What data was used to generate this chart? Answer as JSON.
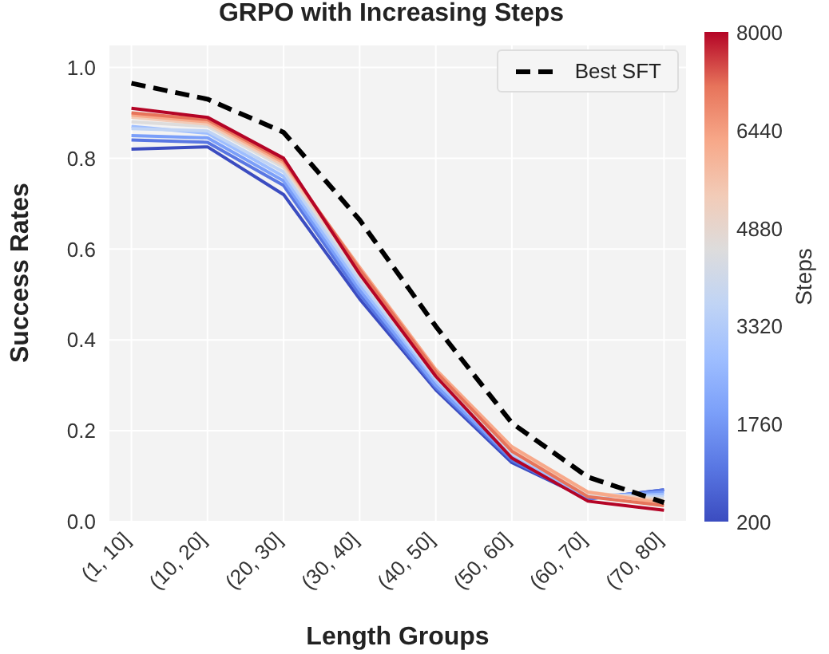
{
  "chart_data": {
    "type": "line",
    "title": "GRPO with Increasing Steps",
    "xlabel": "Length Groups",
    "ylabel": "Success Rates",
    "clabel": "Steps",
    "categories": [
      "(1, 10]",
      "(10, 20]",
      "(20, 30]",
      "(30, 40]",
      "(40, 50]",
      "(50, 60]",
      "(60, 70]",
      "(70, 80]"
    ],
    "ylim": [
      0,
      1.05
    ],
    "yticks": [
      {
        "value": 0,
        "label": "0.0"
      },
      {
        "value": 0.2,
        "label": "0.2"
      },
      {
        "value": 0.4,
        "label": "0.4"
      },
      {
        "value": 0.6,
        "label": "0.6"
      },
      {
        "value": 0.8,
        "label": "0.8"
      },
      {
        "value": 1,
        "label": "1.0"
      }
    ],
    "grid": true,
    "legend": "top right",
    "marker": "none",
    "clim": [
      200,
      8000
    ],
    "cticks": [
      200,
      1760,
      3320,
      4880,
      6440,
      8000
    ],
    "series": [
      {
        "color": "#3b4cc0",
        "values": [
          0.82,
          0.825,
          0.72,
          0.49,
          0.29,
          0.13,
          0.05,
          0.07
        ]
      },
      {
        "color": "#5977e3",
        "values": [
          0.84,
          0.835,
          0.74,
          0.5,
          0.295,
          0.135,
          0.05,
          0.07
        ]
      },
      {
        "color": "#7b9ff9",
        "values": [
          0.85,
          0.845,
          0.75,
          0.51,
          0.3,
          0.14,
          0.055,
          0.065
        ]
      },
      {
        "color": "#9ebeff",
        "values": [
          0.87,
          0.855,
          0.76,
          0.52,
          0.31,
          0.145,
          0.055,
          0.06
        ]
      },
      {
        "color": "#c0d4f5",
        "values": [
          0.865,
          0.86,
          0.77,
          0.53,
          0.315,
          0.15,
          0.06,
          0.055
        ]
      },
      {
        "color": "#dddcdc",
        "values": [
          0.88,
          0.87,
          0.78,
          0.54,
          0.32,
          0.155,
          0.06,
          0.05
        ]
      },
      {
        "color": "#f2cbb7",
        "values": [
          0.89,
          0.875,
          0.785,
          0.55,
          0.33,
          0.16,
          0.065,
          0.045
        ]
      },
      {
        "color": "#f7a889",
        "values": [
          0.895,
          0.88,
          0.79,
          0.56,
          0.335,
          0.165,
          0.065,
          0.04
        ]
      },
      {
        "color": "#e7745b",
        "values": [
          0.9,
          0.885,
          0.795,
          0.555,
          0.33,
          0.155,
          0.055,
          0.035
        ]
      },
      {
        "color": "#b40426",
        "values": [
          0.91,
          0.89,
          0.8,
          0.545,
          0.32,
          0.14,
          0.045,
          0.025
        ]
      },
      {
        "name": "Best SFT",
        "color": "#000000",
        "line_style": "dashed",
        "values": [
          0.965,
          0.93,
          0.857,
          0.664,
          0.43,
          0.217,
          0.098,
          0.042
        ]
      }
    ]
  }
}
